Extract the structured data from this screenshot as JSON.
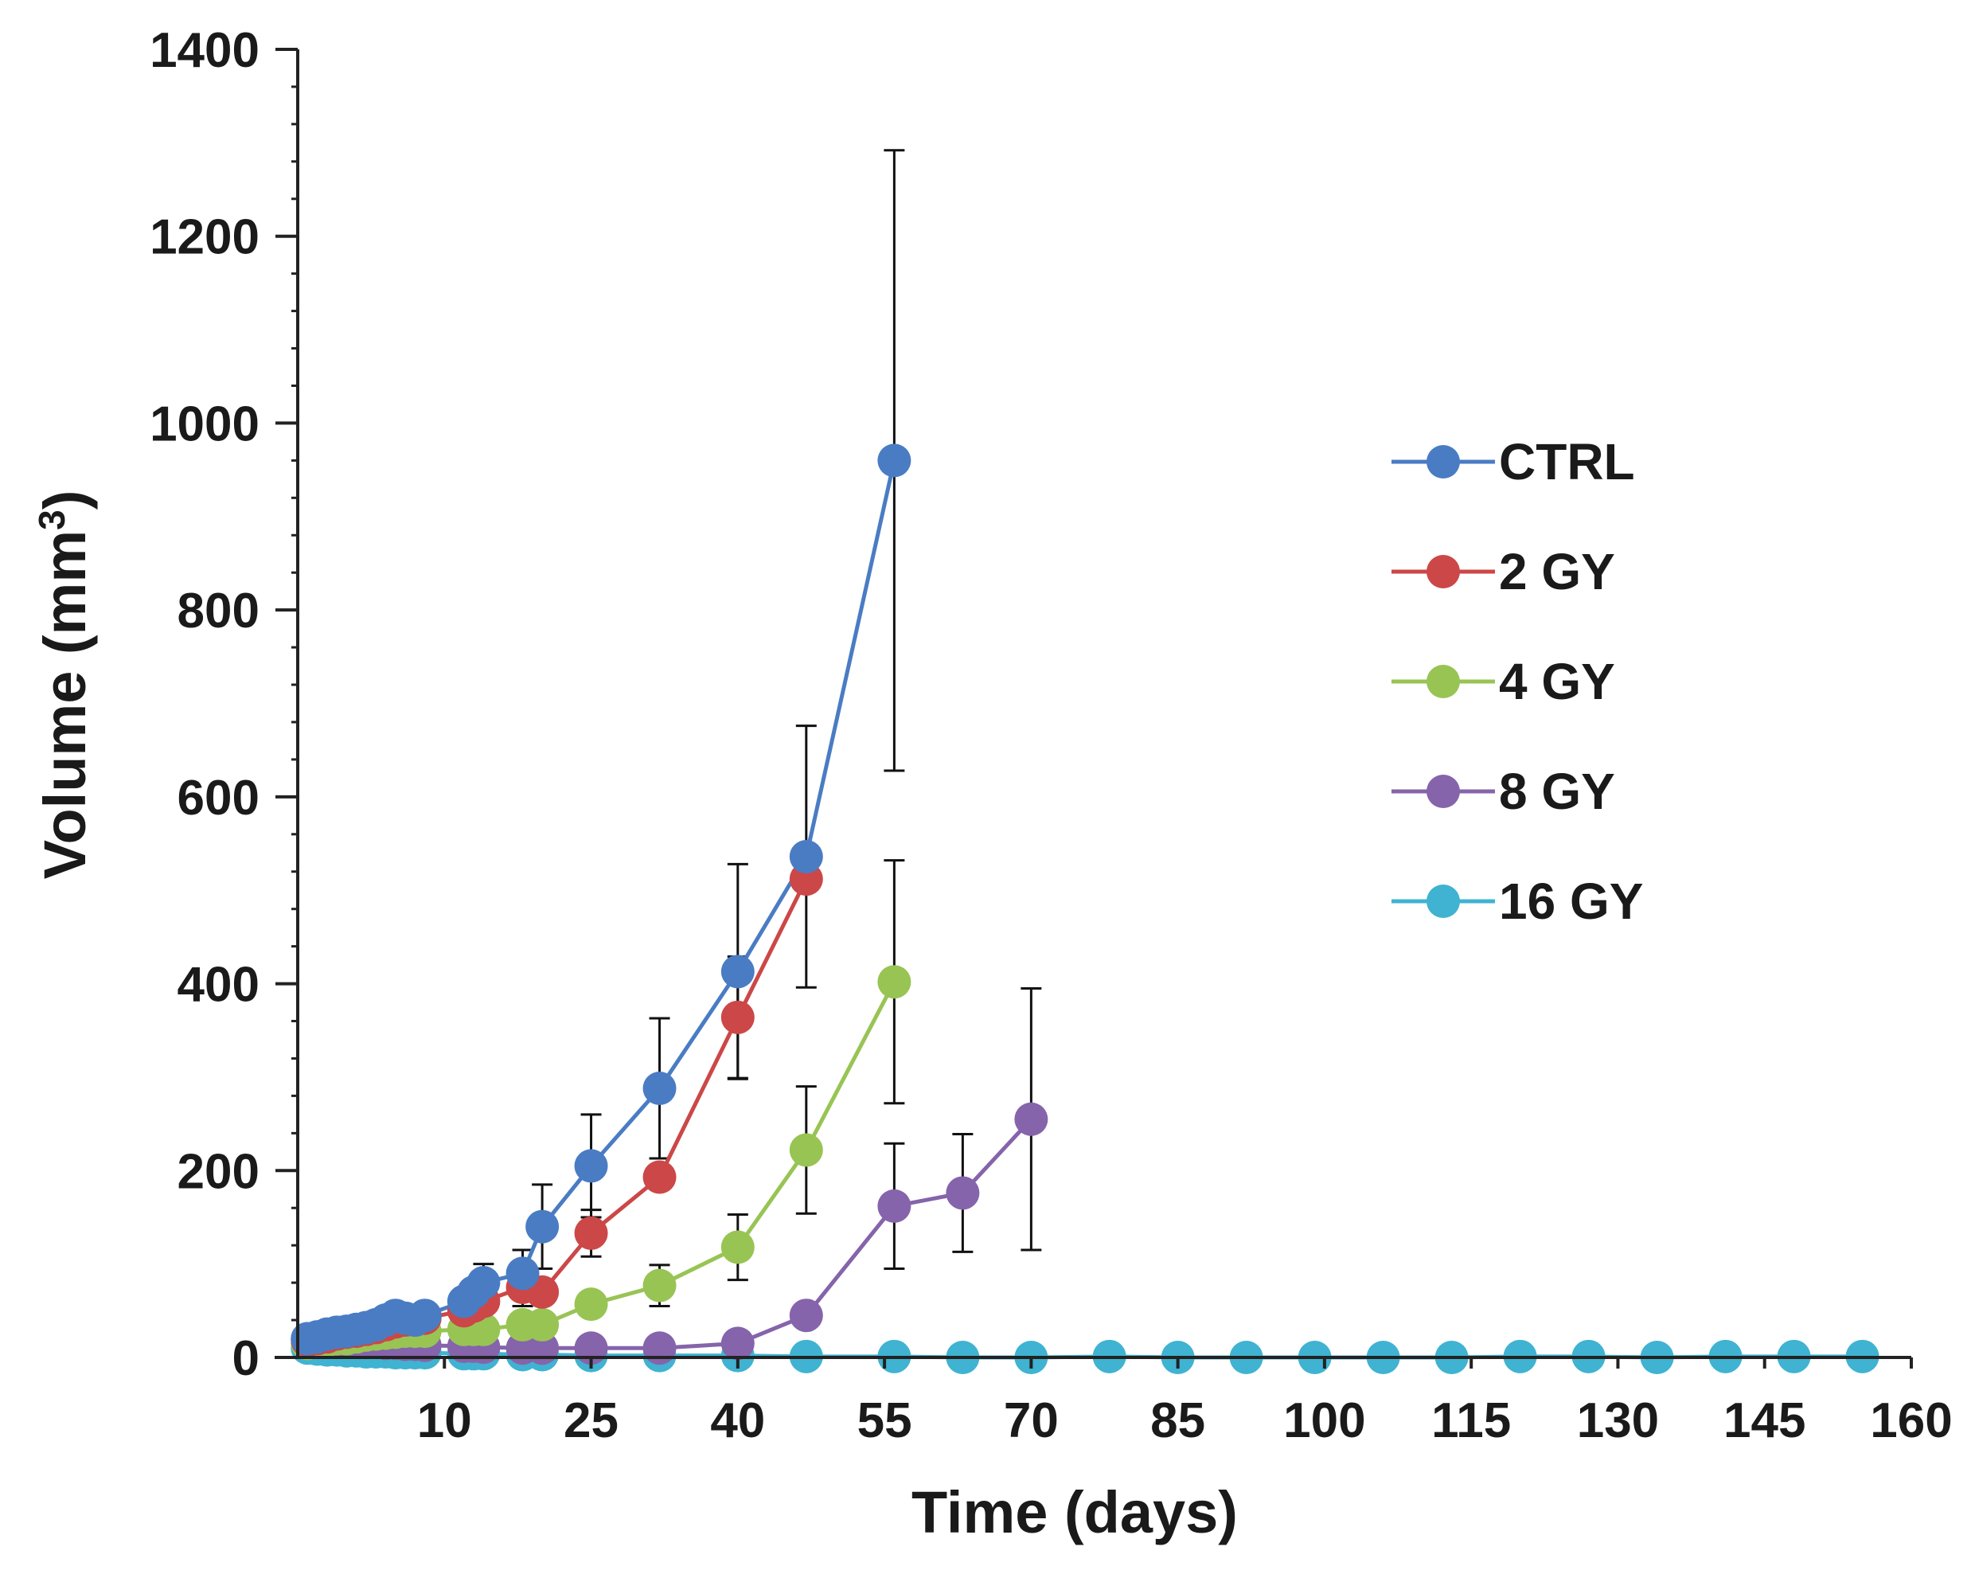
{
  "chart_data": {
    "type": "line",
    "xlabel": "Time (days)",
    "ylabel_main": "Volume (mm",
    "ylabel_sup": "3",
    "ylabel_close": ")",
    "xlim": [
      -5,
      160
    ],
    "ylim": [
      0,
      1400
    ],
    "xticks": [
      10,
      25,
      40,
      55,
      70,
      85,
      100,
      115,
      130,
      145,
      160
    ],
    "yticks": [
      0,
      200,
      400,
      600,
      800,
      1000,
      1200,
      1400
    ],
    "y_minor_step": 40,
    "legend_position": "right",
    "series": [
      {
        "name": "CTRL",
        "color": "#4a7cc4",
        "x": [
          -4,
          -3,
          -2,
          -1,
          0,
          1,
          2,
          3,
          4,
          5,
          6,
          7,
          8,
          12,
          13,
          14,
          18,
          20,
          25,
          32,
          40,
          47,
          56
        ],
        "y": [
          20,
          22,
          25,
          27,
          28,
          30,
          32,
          35,
          40,
          45,
          42,
          40,
          45,
          60,
          70,
          80,
          90,
          140,
          205,
          288,
          413,
          536,
          960
        ],
        "err": [
          0,
          0,
          0,
          0,
          0,
          0,
          0,
          0,
          0,
          0,
          0,
          0,
          0,
          0,
          0,
          20,
          25,
          45,
          55,
          75,
          115,
          140,
          332
        ]
      },
      {
        "name": "2 GY",
        "color": "#cc4747",
        "x": [
          -4,
          -3,
          -2,
          -1,
          0,
          1,
          2,
          3,
          4,
          5,
          6,
          7,
          8,
          12,
          13,
          14,
          18,
          20,
          25,
          32,
          40,
          47
        ],
        "y": [
          18,
          20,
          22,
          25,
          27,
          28,
          30,
          32,
          35,
          38,
          40,
          40,
          42,
          50,
          55,
          60,
          75,
          70,
          133,
          193,
          364,
          512
        ],
        "err": [
          0,
          0,
          0,
          0,
          0,
          0,
          0,
          0,
          0,
          0,
          0,
          0,
          0,
          0,
          0,
          0,
          20,
          0,
          25,
          0,
          65,
          0
        ]
      },
      {
        "name": "4 GY",
        "color": "#98c454",
        "x": [
          -4,
          -3,
          -2,
          -1,
          0,
          1,
          2,
          3,
          4,
          5,
          6,
          7,
          8,
          12,
          13,
          14,
          18,
          20,
          25,
          32,
          40,
          47,
          56
        ],
        "y": [
          15,
          17,
          18,
          20,
          20,
          22,
          24,
          25,
          26,
          27,
          28,
          28,
          28,
          30,
          30,
          30,
          35,
          35,
          57,
          77,
          118,
          222,
          402
        ],
        "err": [
          0,
          0,
          0,
          0,
          0,
          0,
          0,
          0,
          0,
          0,
          0,
          0,
          0,
          0,
          0,
          0,
          0,
          0,
          0,
          22,
          35,
          68,
          130
        ]
      },
      {
        "name": "8 GY",
        "color": "#8564ab",
        "x": [
          -4,
          -3,
          -2,
          -1,
          0,
          1,
          2,
          3,
          4,
          5,
          6,
          7,
          8,
          12,
          13,
          14,
          18,
          20,
          25,
          32,
          40,
          47,
          56,
          63,
          70
        ],
        "y": [
          20,
          19,
          18,
          18,
          17,
          17,
          16,
          16,
          15,
          15,
          14,
          14,
          13,
          12,
          12,
          11,
          10,
          10,
          10,
          10,
          15,
          45,
          162,
          176,
          255
        ],
        "err": [
          0,
          0,
          0,
          0,
          0,
          0,
          0,
          0,
          0,
          0,
          0,
          0,
          0,
          0,
          0,
          0,
          0,
          0,
          0,
          0,
          0,
          0,
          67,
          63,
          140
        ]
      },
      {
        "name": "16 GY",
        "color": "#3fb3d1",
        "x": [
          -4,
          -3,
          -2,
          -1,
          0,
          1,
          2,
          3,
          4,
          5,
          6,
          7,
          8,
          12,
          13,
          14,
          18,
          20,
          25,
          32,
          40,
          47,
          56,
          63,
          70,
          78,
          85,
          92,
          99,
          106,
          113,
          120,
          127,
          134,
          141,
          148,
          155
        ],
        "y": [
          10,
          9,
          8,
          8,
          7,
          7,
          6,
          6,
          6,
          5,
          5,
          5,
          5,
          4,
          4,
          4,
          3,
          3,
          2,
          2,
          2,
          1,
          1,
          0,
          0,
          1,
          0,
          0,
          0,
          0,
          0,
          1,
          1,
          0,
          1,
          1,
          1
        ],
        "err": []
      }
    ]
  }
}
